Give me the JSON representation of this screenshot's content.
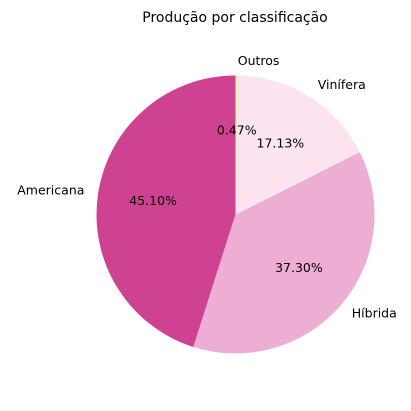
{
  "chart_data": {
    "type": "pie",
    "title": "Produção por classificação",
    "start_angle_deg": 90,
    "direction": "counterclockwise",
    "slices": [
      {
        "label": "Americana",
        "value": 45.1,
        "pct_label": "45.10%",
        "color": "#cf4191"
      },
      {
        "label": "Híbrida",
        "value": 37.3,
        "pct_label": "37.30%",
        "color": "#eeaed4"
      },
      {
        "label": "Vinífera",
        "value": 17.13,
        "pct_label": "17.13%",
        "color": "#fbe4f0"
      },
      {
        "label": "Outros",
        "value": 0.47,
        "pct_label": "0.47%",
        "color": "#f5ecd0"
      }
    ]
  }
}
